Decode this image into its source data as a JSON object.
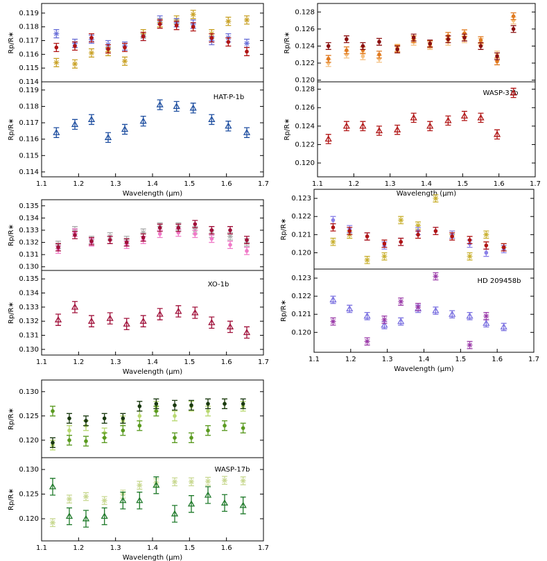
{
  "chart_data": [
    {
      "type": "errorbar",
      "ylabel": "Rp/R∗",
      "xlim": [
        1.1,
        1.7
      ],
      "ylim": [
        0.114,
        0.1197
      ],
      "yticks": [
        0.114,
        0.115,
        0.116,
        0.117,
        0.118,
        0.119
      ],
      "x": [
        1.14,
        1.19,
        1.235,
        1.28,
        1.325,
        1.375,
        1.42,
        1.465,
        1.51,
        1.56,
        1.605,
        1.655
      ],
      "series": [
        {
          "color": "#c9a227",
          "marker": "star",
          "values": [
            0.1154,
            0.1153,
            0.1161,
            0.1162,
            0.1155,
            0.1175,
            0.1183,
            0.1185,
            0.1189,
            0.1175,
            0.1184,
            0.1185
          ],
          "errors": [
            0.0003,
            0.0003,
            0.0003,
            0.0003,
            0.0003,
            0.0003,
            0.0003,
            0.0003,
            0.0003,
            0.0003,
            0.0003,
            0.0003
          ]
        },
        {
          "color": "#6a70d8",
          "marker": "star",
          "values": [
            0.1175,
            0.1168,
            0.1171,
            0.1167,
            0.1166,
            0.1173,
            0.1185,
            0.1183,
            0.1182,
            0.117,
            0.1172,
            0.1168
          ],
          "errors": [
            0.0003,
            0.0003,
            0.0003,
            0.0003,
            0.0003,
            0.0003,
            0.0003,
            0.0003,
            0.0003,
            0.0003,
            0.0003,
            0.0003
          ]
        },
        {
          "color": "#b01515",
          "marker": "circle",
          "values": [
            0.1165,
            0.1166,
            0.1172,
            0.1164,
            0.1165,
            0.1173,
            0.1182,
            0.1181,
            0.118,
            0.1172,
            0.1169,
            0.1162
          ],
          "errors": [
            0.0003,
            0.0003,
            0.0003,
            0.0003,
            0.0003,
            0.0003,
            0.0003,
            0.0003,
            0.0003,
            0.0003,
            0.0003,
            0.0003
          ]
        }
      ]
    },
    {
      "type": "errorbar",
      "ylabel": "Rp/R∗",
      "xlabel": "Wavelength (μm)",
      "label": "HAT-P-1b",
      "xlim": [
        1.1,
        1.7
      ],
      "xticks": [
        1.1,
        1.2,
        1.3,
        1.4,
        1.5,
        1.6,
        1.7
      ],
      "ylim": [
        0.1137,
        0.1195
      ],
      "yticks": [
        0.114,
        0.115,
        0.116,
        0.117,
        0.118,
        0.119
      ],
      "x": [
        1.14,
        1.19,
        1.235,
        1.28,
        1.325,
        1.375,
        1.42,
        1.465,
        1.51,
        1.56,
        1.605,
        1.655
      ],
      "series": [
        {
          "color": "#1f4fa0",
          "marker": "triangle",
          "values": [
            0.1164,
            0.1169,
            0.1172,
            0.1161,
            0.1166,
            0.1171,
            0.1181,
            0.118,
            0.1179,
            0.1172,
            0.1168,
            0.1164
          ],
          "errors": [
            0.0003,
            0.0003,
            0.0003,
            0.0003,
            0.0003,
            0.0003,
            0.0003,
            0.0003,
            0.0003,
            0.0003,
            0.0003,
            0.0003
          ]
        }
      ]
    },
    {
      "type": "errorbar",
      "ylabel": "Rp/R∗",
      "xlim": [
        1.1,
        1.7
      ],
      "ylim": [
        0.1198,
        0.129
      ],
      "yticks": [
        {
          "value": 0.12,
          "label": "0.120"
        },
        0.122,
        0.124,
        0.126,
        0.128
      ],
      "x": [
        1.13,
        1.18,
        1.225,
        1.27,
        1.32,
        1.365,
        1.41,
        1.46,
        1.505,
        1.55,
        1.595,
        1.64
      ],
      "series": [
        {
          "color": "#f5c080",
          "marker": "circle",
          "values": [
            0.122,
            0.123,
            0.1228,
            0.1225,
            0.1238,
            0.1245,
            0.124,
            0.1245,
            0.1248,
            0.1245,
            0.123,
            0.127
          ],
          "errors": [
            0.0004,
            0.0004,
            0.0004,
            0.0004,
            0.0004,
            0.0004,
            0.0004,
            0.0004,
            0.0004,
            0.0004,
            0.0004,
            0.0004
          ]
        },
        {
          "color": "#e07a20",
          "marker": "circle",
          "values": [
            0.1225,
            0.1235,
            0.1235,
            0.123,
            0.1237,
            0.1248,
            0.1242,
            0.1252,
            0.1255,
            0.1247,
            0.1222,
            0.1275
          ],
          "errors": [
            0.0004,
            0.0004,
            0.0004,
            0.0004,
            0.0004,
            0.0004,
            0.0004,
            0.0004,
            0.0004,
            0.0004,
            0.0004,
            0.0004
          ]
        },
        {
          "color": "#8b1010",
          "marker": "circle",
          "values": [
            0.124,
            0.1248,
            0.124,
            0.1245,
            0.1236,
            0.125,
            0.1243,
            0.1248,
            0.125,
            0.124,
            0.1228,
            0.126
          ],
          "errors": [
            0.0004,
            0.0004,
            0.0004,
            0.0004,
            0.0004,
            0.0004,
            0.0004,
            0.0004,
            0.0004,
            0.0004,
            0.0004,
            0.0004
          ]
        }
      ]
    },
    {
      "type": "errorbar",
      "ylabel": "Rp/R∗",
      "xlabel": "Wavelength (μm)",
      "label": "WASP-31b",
      "xlim": [
        1.1,
        1.7
      ],
      "xticks": [
        1.1,
        1.2,
        1.3,
        1.4,
        1.5,
        1.6,
        1.7
      ],
      "ylim": [
        0.1185,
        0.1288
      ],
      "yticks": [
        {
          "value": 0.12,
          "label": "0.120"
        },
        0.122,
        0.124,
        0.126,
        0.128
      ],
      "x": [
        1.13,
        1.18,
        1.225,
        1.27,
        1.32,
        1.365,
        1.41,
        1.46,
        1.505,
        1.55,
        1.595,
        1.64
      ],
      "series": [
        {
          "color": "#b01515",
          "marker": "triangle",
          "values": [
            0.1226,
            0.124,
            0.124,
            0.1235,
            0.1236,
            0.1249,
            0.124,
            0.1246,
            0.1251,
            0.1249,
            0.1231,
            0.1276
          ],
          "errors": [
            0.0005,
            0.0005,
            0.0005,
            0.0005,
            0.0005,
            0.0005,
            0.0005,
            0.0005,
            0.0005,
            0.0005,
            0.0005,
            0.0005
          ]
        }
      ]
    },
    {
      "type": "errorbar",
      "ylabel": "Rp/R∗",
      "xlim": [
        1.1,
        1.7
      ],
      "ylim": [
        0.1297,
        0.1355
      ],
      "yticks": [
        {
          "value": 0.13,
          "label": "0.130"
        },
        0.131,
        0.132,
        0.133,
        0.134,
        {
          "value": 0.135,
          "label": "0.135"
        }
      ],
      "x": [
        1.145,
        1.19,
        1.235,
        1.285,
        1.33,
        1.375,
        1.42,
        1.47,
        1.515,
        1.56,
        1.61,
        1.655
      ],
      "series": [
        {
          "color": "#aaaaaa",
          "marker": "star",
          "values": [
            0.1318,
            0.133,
            0.1322,
            0.1325,
            0.1322,
            0.1328,
            0.1333,
            0.1333,
            0.133,
            0.1327,
            0.1325,
            0.132
          ],
          "errors": [
            0.0003,
            0.0003,
            0.0003,
            0.0003,
            0.0003,
            0.0003,
            0.0003,
            0.0003,
            0.0003,
            0.0003,
            0.0003,
            0.0003
          ]
        },
        {
          "color": "#f07ac8",
          "marker": "circle",
          "values": [
            0.1314,
            0.1328,
            0.132,
            0.1322,
            0.1318,
            0.1322,
            0.1327,
            0.1328,
            0.1327,
            0.1323,
            0.1318,
            0.1313
          ],
          "errors": [
            0.0003,
            0.0003,
            0.0003,
            0.0003,
            0.0003,
            0.0003,
            0.0003,
            0.0003,
            0.0003,
            0.0003,
            0.0003,
            0.0003
          ]
        },
        {
          "color": "#a0103a",
          "marker": "circle",
          "values": [
            0.1316,
            0.1326,
            0.1321,
            0.1322,
            0.132,
            0.1324,
            0.1332,
            0.1332,
            0.1335,
            0.133,
            0.133,
            0.1322
          ],
          "errors": [
            0.0003,
            0.0003,
            0.0003,
            0.0003,
            0.0003,
            0.0003,
            0.0003,
            0.0003,
            0.0003,
            0.0003,
            0.0003,
            0.0003
          ]
        }
      ]
    },
    {
      "type": "errorbar",
      "ylabel": "Rp/R∗",
      "xlabel": "Wavelength (μm)",
      "label": "XO-1b",
      "xlim": [
        1.1,
        1.7
      ],
      "xticks": [
        1.1,
        1.2,
        1.3,
        1.4,
        1.5,
        1.6,
        1.7
      ],
      "ylim": [
        0.1296,
        0.1356
      ],
      "yticks": [
        {
          "value": 0.13,
          "label": "0.130"
        },
        0.131,
        0.132,
        0.133,
        0.134,
        {
          "value": 0.135,
          "label": "0.135"
        }
      ],
      "x": [
        1.145,
        1.19,
        1.235,
        1.285,
        1.33,
        1.375,
        1.42,
        1.47,
        1.515,
        1.56,
        1.61,
        1.655
      ],
      "series": [
        {
          "color": "#a0103a",
          "marker": "triangle",
          "values": [
            0.1321,
            0.133,
            0.132,
            0.1322,
            0.1318,
            0.132,
            0.1325,
            0.1327,
            0.1326,
            0.1319,
            0.1316,
            0.1312
          ],
          "errors": [
            0.0004,
            0.0004,
            0.0004,
            0.0004,
            0.0004,
            0.0004,
            0.0004,
            0.0004,
            0.0004,
            0.0004,
            0.0004,
            0.0004
          ]
        }
      ]
    },
    {
      "type": "errorbar",
      "ylabel": "Rp/R∗",
      "xlim": [
        1.1,
        1.7
      ],
      "ylim": [
        0.1191,
        0.1235
      ],
      "yticks": [
        {
          "value": 0.12,
          "label": "0.120"
        },
        0.121,
        0.122,
        0.123
      ],
      "x": [
        1.152,
        1.197,
        1.245,
        1.292,
        1.337,
        1.384,
        1.432,
        1.477,
        1.525,
        1.57,
        1.618
      ],
      "series": [
        {
          "color": "#c9b030",
          "marker": "star",
          "values": [
            0.1206,
            0.121,
            0.1196,
            0.1198,
            0.1218,
            0.1215,
            0.123,
            0.121,
            0.1198,
            0.121,
            0.1203
          ],
          "errors": [
            0.0002,
            0.0002,
            0.0002,
            0.0002,
            0.0002,
            0.0002,
            0.0002,
            0.0002,
            0.0002,
            0.0002,
            0.0002
          ]
        },
        {
          "color": "#8a80e8",
          "marker": "circle",
          "values": [
            0.1218,
            0.1213,
            0.1209,
            0.1204,
            0.1206,
            0.1212,
            0.1212,
            0.121,
            0.1205,
            0.12,
            0.1202
          ],
          "errors": [
            0.0002,
            0.0002,
            0.0002,
            0.0002,
            0.0002,
            0.0002,
            0.0002,
            0.0002,
            0.0002,
            0.0002,
            0.0002
          ]
        },
        {
          "color": "#b01515",
          "marker": "circle",
          "values": [
            0.1214,
            0.1212,
            0.1209,
            0.1205,
            0.1206,
            0.121,
            0.1212,
            0.1209,
            0.1207,
            0.1204,
            0.1203
          ],
          "errors": [
            0.0002,
            0.0002,
            0.0002,
            0.0002,
            0.0002,
            0.0002,
            0.0002,
            0.0002,
            0.0002,
            0.0002,
            0.0002
          ]
        }
      ]
    },
    {
      "type": "errorbar",
      "ylabel": "Rp/R∗",
      "xlabel": "Wavelength (μm)",
      "label": "HD 209458b",
      "xlim": [
        1.1,
        1.7
      ],
      "xticks": [
        1.1,
        1.2,
        1.3,
        1.4,
        1.5,
        1.6,
        1.7
      ],
      "ylim": [
        0.1189,
        0.1235
      ],
      "yticks": [
        {
          "value": 0.12,
          "label": "0.120"
        },
        0.121,
        0.122,
        0.123
      ],
      "x": [
        1.152,
        1.197,
        1.245,
        1.292,
        1.337,
        1.384,
        1.432,
        1.477,
        1.525,
        1.57,
        1.618
      ],
      "series": [
        {
          "color": "#7a70e0",
          "marker": "triangle",
          "values": [
            0.1218,
            0.1213,
            0.1209,
            0.1204,
            0.1206,
            0.1213,
            0.1212,
            0.121,
            0.1209,
            0.1205,
            0.1203
          ],
          "errors": [
            0.0002,
            0.0002,
            0.0002,
            0.0002,
            0.0002,
            0.0002,
            0.0002,
            0.0002,
            0.0002,
            0.0002,
            0.0002
          ]
        },
        {
          "color": "#9a3aa8",
          "marker": "star",
          "values": [
            0.1206,
            null,
            0.1195,
            0.1207,
            0.1217,
            0.1214,
            0.1231,
            null,
            0.1193,
            0.1209,
            null
          ],
          "errors": [
            0.0002,
            null,
            0.0002,
            0.0002,
            0.0002,
            0.0002,
            0.0002,
            null,
            0.0002,
            0.0002,
            null
          ]
        }
      ]
    },
    {
      "type": "errorbar",
      "ylabel": "Rp/R∗",
      "xlim": [
        1.1,
        1.7
      ],
      "ylim": [
        0.1164,
        0.1324
      ],
      "yticks": [
        {
          "value": 0.12,
          "label": "0.120"
        },
        0.125,
        {
          "value": 0.13,
          "label": "0.130"
        }
      ],
      "x": [
        1.13,
        1.175,
        1.22,
        1.27,
        1.32,
        1.365,
        1.41,
        1.46,
        1.505,
        1.55,
        1.595,
        1.645
      ],
      "series": [
        {
          "color": "#b8d870",
          "marker": "circle",
          "values": [
            0.119,
            0.122,
            0.123,
            0.1215,
            0.124,
            0.125,
            0.127,
            0.125,
            0.127,
            0.126,
            0.1275,
            0.127
          ],
          "errors": [
            0.001,
            0.001,
            0.001,
            0.001,
            0.001,
            0.001,
            0.001,
            0.001,
            0.001,
            0.001,
            0.001,
            0.001
          ]
        },
        {
          "color": "#5a9a20",
          "marker": "circle",
          "values": [
            0.126,
            0.12,
            0.1198,
            0.1205,
            0.122,
            0.123,
            0.126,
            0.1205,
            0.1205,
            0.122,
            0.123,
            0.1225
          ],
          "errors": [
            0.001,
            0.001,
            0.001,
            0.001,
            0.001,
            0.001,
            0.001,
            0.001,
            0.001,
            0.001,
            0.001,
            0.001
          ]
        },
        {
          "color": "#1a3a10",
          "marker": "circle",
          "values": [
            0.1195,
            0.1245,
            0.124,
            0.1245,
            0.1245,
            0.127,
            0.1275,
            0.1272,
            0.1272,
            0.1275,
            0.1275,
            0.1275
          ],
          "errors": [
            0.001,
            0.001,
            0.001,
            0.001,
            0.001,
            0.001,
            0.001,
            0.001,
            0.001,
            0.001,
            0.001,
            0.001
          ]
        }
      ]
    },
    {
      "type": "errorbar",
      "ylabel": "Rp/R∗",
      "xlabel": "Wavelength (μm)",
      "label": "WASP-17b",
      "xlim": [
        1.1,
        1.7
      ],
      "xticks": [
        1.1,
        1.2,
        1.3,
        1.4,
        1.5,
        1.6,
        1.7
      ],
      "ylim": [
        0.1155,
        0.1324
      ],
      "yticks": [
        {
          "value": 0.12,
          "label": "0.120"
        },
        0.125,
        {
          "value": 0.13,
          "label": "0.130"
        }
      ],
      "x": [
        1.13,
        1.175,
        1.22,
        1.27,
        1.32,
        1.365,
        1.41,
        1.46,
        1.505,
        1.55,
        1.595,
        1.645
      ],
      "series": [
        {
          "color": "#c8d890",
          "marker": "star",
          "values": [
            0.1192,
            0.124,
            0.1245,
            0.1237,
            0.125,
            0.1268,
            0.1273,
            0.1275,
            0.1275,
            0.1276,
            0.1278,
            0.1277
          ],
          "errors": [
            0.0008,
            0.0008,
            0.0008,
            0.0008,
            0.0008,
            0.0008,
            0.0008,
            0.0008,
            0.0008,
            0.0008,
            0.0008,
            0.0008
          ]
        },
        {
          "color": "#1f7a2a",
          "marker": "triangle",
          "values": [
            0.1265,
            0.1205,
            0.12,
            0.1205,
            0.1237,
            0.1237,
            0.1268,
            0.121,
            0.123,
            0.1248,
            0.1232,
            0.1227
          ],
          "errors": [
            0.0017,
            0.0017,
            0.0017,
            0.0017,
            0.0017,
            0.0017,
            0.0017,
            0.0017,
            0.0017,
            0.0017,
            0.0017,
            0.0017
          ]
        }
      ]
    }
  ]
}
